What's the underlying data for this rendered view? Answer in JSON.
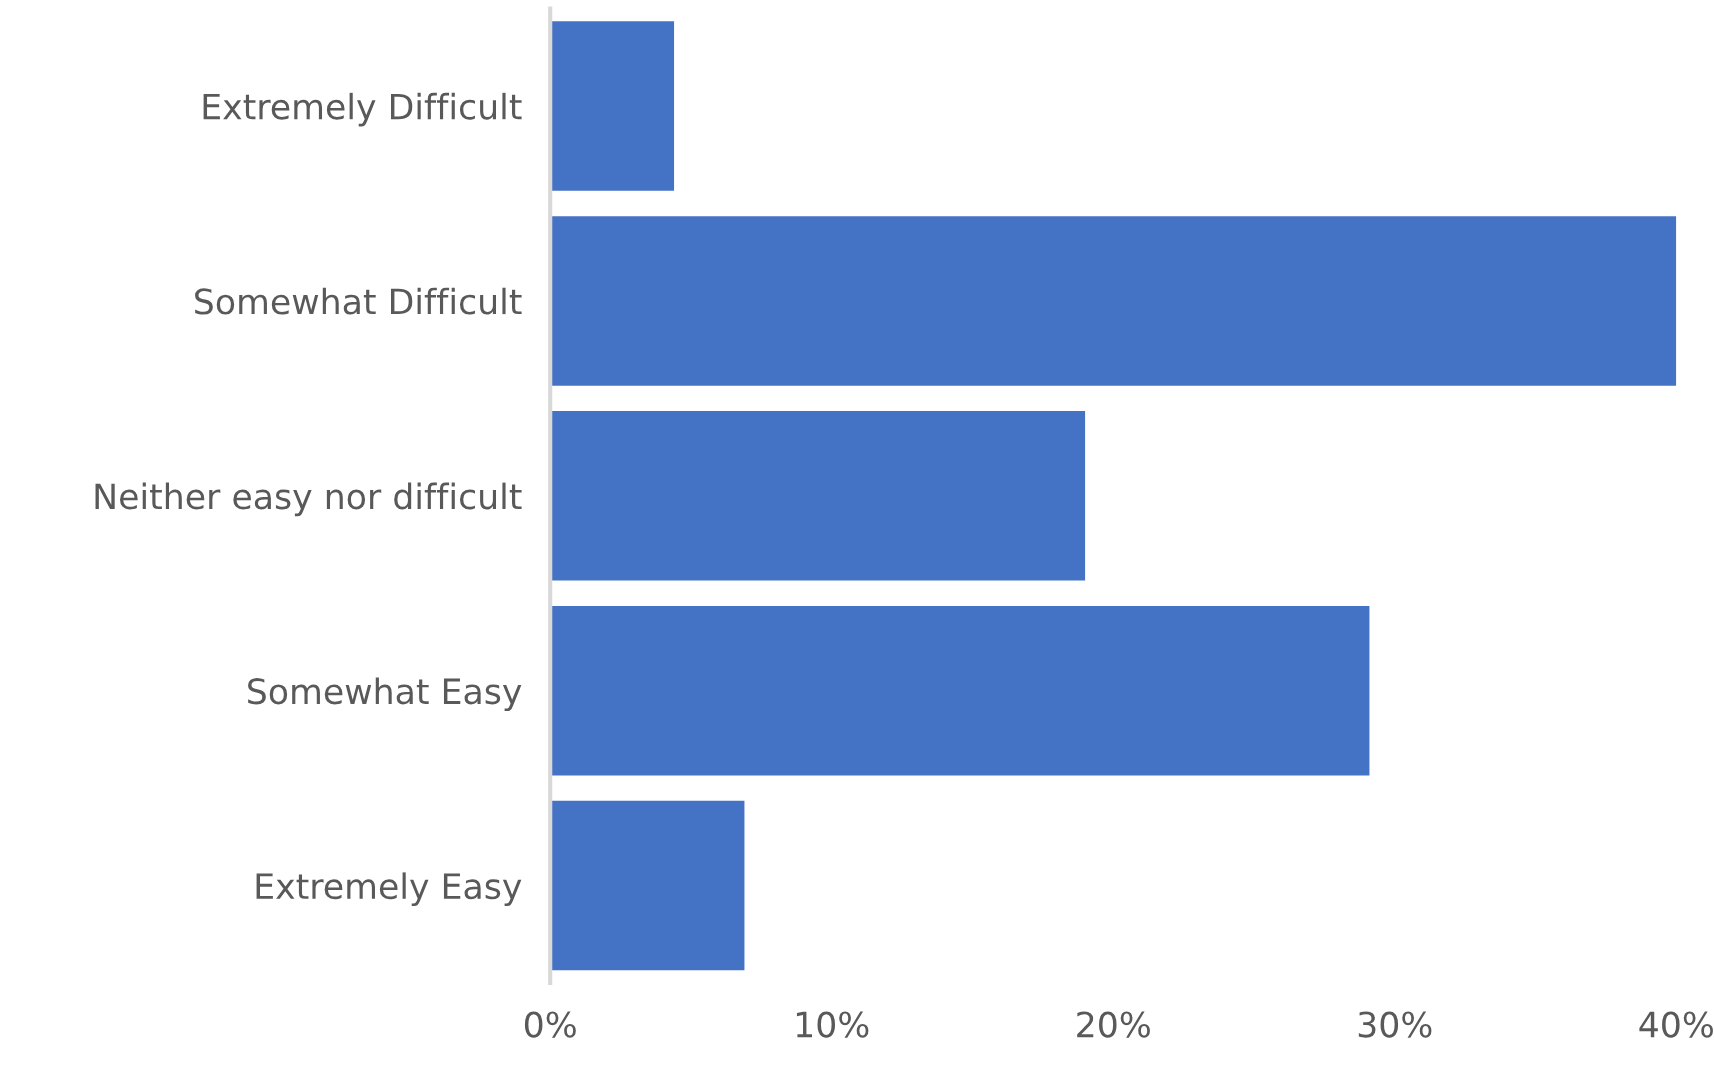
{
  "chart_data": {
    "type": "bar",
    "orientation": "horizontal",
    "categories": [
      "Extremely Difficult",
      "Somewhat Difficult",
      "Neither easy nor difficult",
      "Somewhat Easy",
      "Extremely Easy"
    ],
    "values": [
      4.4,
      40.0,
      19.0,
      29.1,
      6.9
    ],
    "color": "#4472c4",
    "xlim": [
      0,
      40
    ],
    "xticks": [
      {
        "value": 0,
        "label": "0%"
      },
      {
        "value": 10,
        "label": "10%"
      },
      {
        "value": 20,
        "label": "20%"
      },
      {
        "value": 30,
        "label": "30%"
      },
      {
        "value": 40,
        "label": "40%"
      }
    ],
    "grid": false
  }
}
